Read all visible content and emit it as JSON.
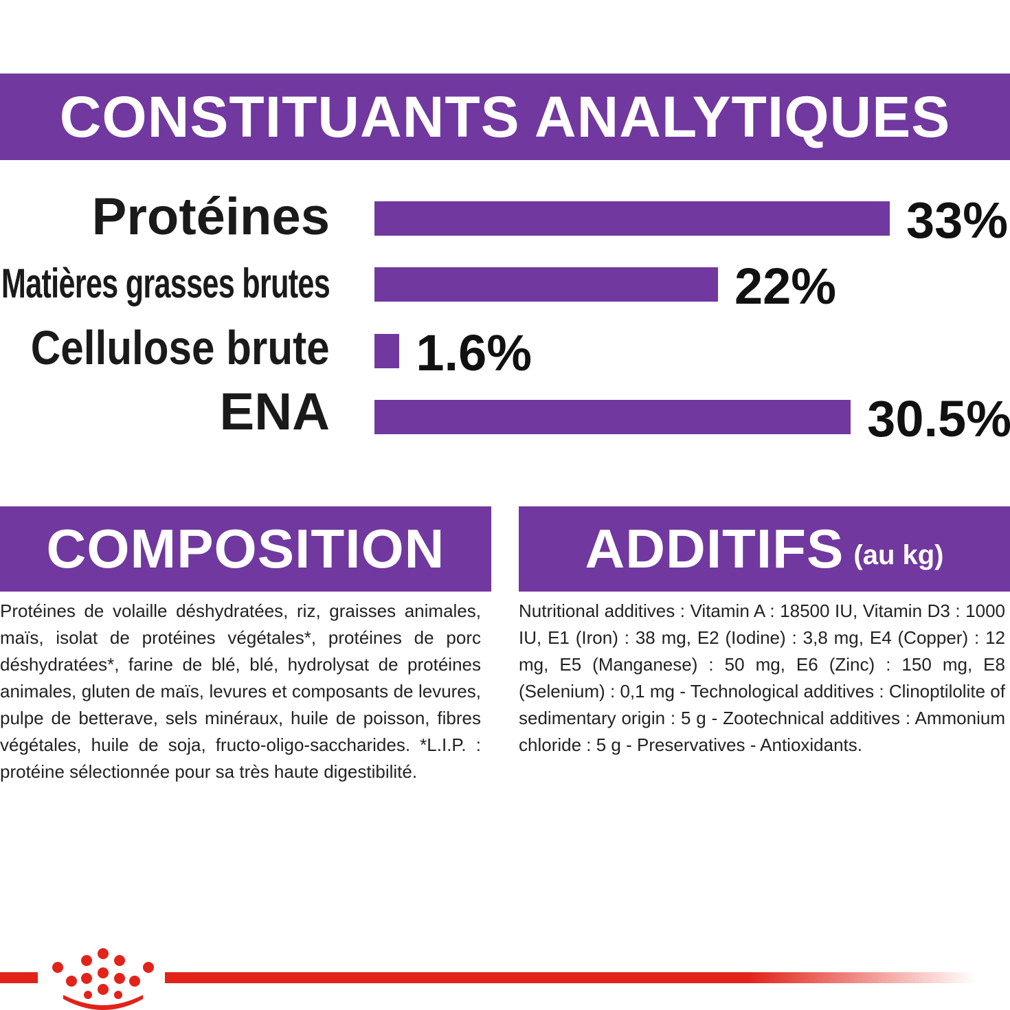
{
  "header": {
    "title": "CONSTITUANTS ANALYTIQUES"
  },
  "colors": {
    "purple": "#7138a0",
    "red": "#e2231a",
    "text": "#222222"
  },
  "chart_data": {
    "type": "bar",
    "orientation": "horizontal",
    "title": "CONSTITUANTS ANALYTIQUES",
    "categories": [
      "Protéines",
      "Matières grasses brutes",
      "Cellulose brute",
      "ENA"
    ],
    "values": [
      33,
      22,
      1.6,
      30.5
    ],
    "value_labels": [
      "33%",
      "22%",
      "1.6%",
      "30.5%"
    ],
    "unit": "%",
    "xlim": [
      0,
      33
    ],
    "grid": false,
    "legend": "none"
  },
  "composition": {
    "title": "COMPOSITION",
    "text": "Protéines de volaille déshydratées, riz, graisses animales, maïs, isolat de protéines végétales*, protéines de porc déshydratées*, farine de blé, blé, hydrolysat de protéines animales, gluten de maïs, levures et composants de levures, pulpe de betterave, sels minéraux, huile de poisson, fibres végétales, huile de soja, fructo-oligo-saccharides. *L.I.P. : protéine sélectionnée pour sa très haute digestibilité."
  },
  "additifs": {
    "title": "ADDITIFS",
    "subtitle": "(au kg)",
    "text": "Nutritional additives : Vitamin A : 18500 IU, Vitamin D3 : 1000 IU, E1 (Iron) : 38 mg, E2 (Iodine) : 3,8 mg, E4 (Copper) : 12 mg, E5 (Manganese) : 50 mg, E6 (Zinc) : 150 mg, E8 (Selenium) : 0,1 mg - Technological additives : Clinoptilolite of sedimentary origin : 5 g - Zootechnical additives : Ammonium chloride : 5 g - Preservatives - Antioxidants."
  },
  "footer": {
    "logo_icon": "royal-canin-crown-icon"
  }
}
